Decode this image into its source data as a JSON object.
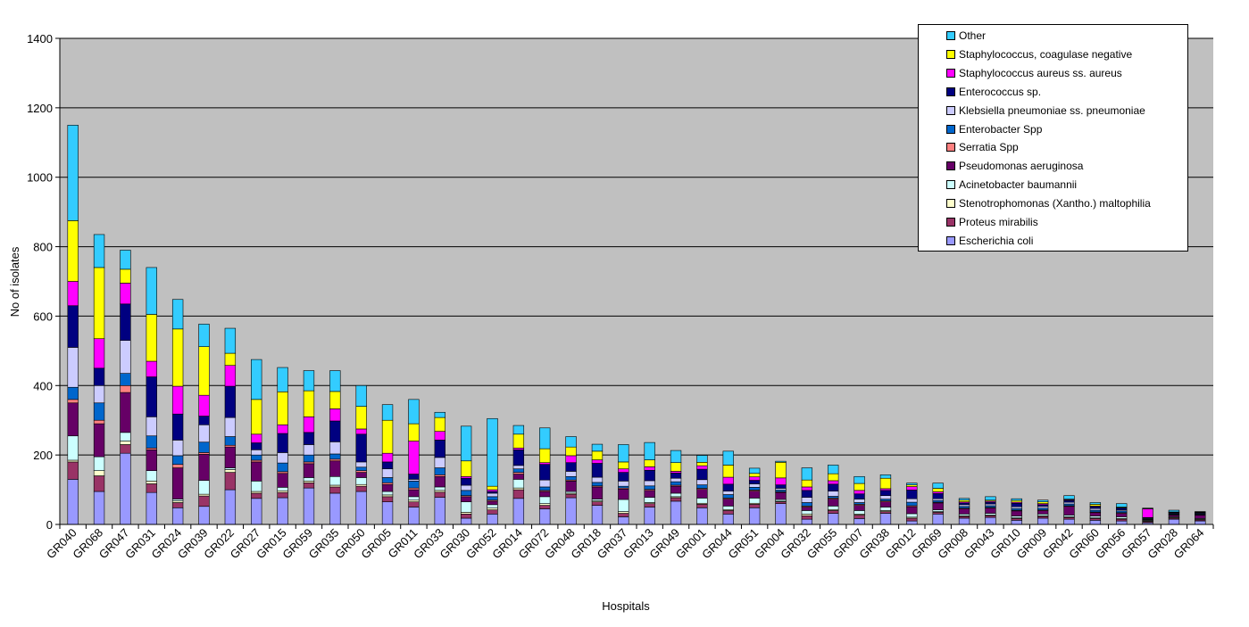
{
  "chart_data": {
    "type": "bar",
    "stacked": true,
    "title": "",
    "xlabel": "Hospitals",
    "ylabel": "No of isolates",
    "ylim": [
      0,
      1400
    ],
    "yticks": [
      0,
      200,
      400,
      600,
      800,
      1000,
      1200,
      1400
    ],
    "grid": true,
    "legend_placement": "top-right",
    "categories": [
      "GR040",
      "GR068",
      "GR047",
      "GR031",
      "GR024",
      "GR039",
      "GR022",
      "GR027",
      "GR015",
      "GR059",
      "GR035",
      "GR050",
      "GR005",
      "GR011",
      "GR033",
      "GR030",
      "GR052",
      "GR014",
      "GR072",
      "GR048",
      "GR018",
      "GR037",
      "GR013",
      "GR049",
      "GR001",
      "GR044",
      "GR051",
      "GR004",
      "GR032",
      "GR055",
      "GR007",
      "GR038",
      "GR012",
      "GR069",
      "GR008",
      "GR043",
      "GR010",
      "GR009",
      "GR042",
      "GR060",
      "GR056",
      "GR057",
      "GR028",
      "GR064"
    ],
    "series": [
      {
        "name": "Escherichia coli",
        "color": "#9999ff",
        "values": [
          130,
          95,
          205,
          92,
          48,
          52,
          100,
          75,
          77,
          105,
          90,
          95,
          65,
          50,
          78,
          18,
          30,
          75,
          45,
          77,
          55,
          22,
          50,
          67,
          48,
          30,
          48,
          60,
          15,
          32,
          17,
          32,
          10,
          30,
          18,
          20,
          12,
          18,
          15,
          12,
          10,
          5,
          15,
          10
        ]
      },
      {
        "name": "Proteus mirabilis",
        "color": "#993366",
        "values": [
          50,
          45,
          25,
          25,
          15,
          30,
          50,
          15,
          15,
          15,
          18,
          15,
          15,
          15,
          15,
          12,
          12,
          25,
          10,
          10,
          10,
          10,
          10,
          10,
          10,
          10,
          10,
          5,
          10,
          8,
          10,
          5,
          8,
          5,
          5,
          5,
          5,
          5,
          5,
          5,
          5,
          3,
          3,
          3
        ]
      },
      {
        "name": "Stenotrophomonas (Xantho.) maltophilia",
        "color": "#ffffcc",
        "values": [
          5,
          15,
          10,
          8,
          5,
          5,
          8,
          5,
          5,
          5,
          5,
          5,
          5,
          5,
          5,
          5,
          5,
          5,
          5,
          3,
          3,
          5,
          3,
          3,
          3,
          3,
          3,
          2,
          5,
          3,
          3,
          3,
          3,
          2,
          2,
          2,
          2,
          2,
          2,
          2,
          2,
          2,
          2,
          2
        ]
      },
      {
        "name": "Acinetobacter baumannii",
        "color": "#ccffff",
        "values": [
          70,
          40,
          25,
          30,
          5,
          40,
          5,
          30,
          10,
          10,
          25,
          20,
          10,
          10,
          10,
          30,
          10,
          25,
          20,
          5,
          5,
          35,
          15,
          10,
          15,
          10,
          15,
          5,
          10,
          10,
          10,
          10,
          10,
          5,
          5,
          5,
          5,
          5,
          5,
          5,
          5,
          2,
          2,
          2
        ]
      },
      {
        "name": "Pseudomonas aeruginosa",
        "color": "#660066",
        "values": [
          95,
          95,
          115,
          60,
          90,
          75,
          60,
          55,
          40,
          40,
          45,
          15,
          20,
          20,
          30,
          15,
          10,
          15,
          15,
          30,
          35,
          30,
          20,
          20,
          25,
          20,
          20,
          20,
          10,
          20,
          15,
          15,
          20,
          20,
          15,
          15,
          15,
          10,
          25,
          10,
          10,
          2,
          5,
          10
        ]
      },
      {
        "name": "Serratia Spp",
        "color": "#ff8080",
        "values": [
          10,
          10,
          20,
          5,
          10,
          5,
          5,
          5,
          5,
          5,
          5,
          5,
          5,
          5,
          5,
          3,
          3,
          5,
          3,
          3,
          3,
          3,
          3,
          3,
          3,
          3,
          3,
          2,
          3,
          3,
          3,
          3,
          3,
          2,
          2,
          2,
          2,
          2,
          2,
          2,
          2,
          1,
          1,
          1
        ]
      },
      {
        "name": "Enterobacter Spp",
        "color": "#0066cc",
        "values": [
          35,
          50,
          35,
          35,
          25,
          30,
          25,
          15,
          25,
          20,
          15,
          10,
          15,
          20,
          20,
          15,
          10,
          10,
          10,
          10,
          10,
          5,
          10,
          10,
          10,
          10,
          8,
          5,
          10,
          5,
          5,
          5,
          10,
          5,
          5,
          5,
          5,
          5,
          5,
          5,
          5,
          2,
          2,
          2
        ]
      },
      {
        "name": "Klebsiella pneumoniae ss. pneumoniae",
        "color": "#ccccff",
        "values": [
          115,
          50,
          95,
          55,
          45,
          50,
          55,
          15,
          30,
          30,
          35,
          15,
          25,
          5,
          30,
          15,
          10,
          10,
          20,
          15,
          15,
          15,
          15,
          10,
          15,
          10,
          10,
          5,
          15,
          15,
          10,
          10,
          10,
          5,
          5,
          5,
          5,
          5,
          5,
          5,
          3,
          2,
          2,
          2
        ]
      },
      {
        "name": "Enterococcus sp.",
        "color": "#000080",
        "values": [
          120,
          50,
          105,
          115,
          75,
          25,
          90,
          20,
          55,
          35,
          60,
          80,
          20,
          15,
          50,
          20,
          5,
          45,
          45,
          25,
          40,
          25,
          30,
          15,
          30,
          20,
          10,
          10,
          20,
          20,
          15,
          15,
          25,
          15,
          5,
          5,
          10,
          5,
          5,
          5,
          5,
          1,
          2,
          2
        ]
      },
      {
        "name": "Staphylococcus aureus ss. aureus",
        "color": "#ff00ff",
        "values": [
          70,
          85,
          60,
          45,
          80,
          60,
          60,
          25,
          25,
          45,
          35,
          15,
          25,
          95,
          25,
          5,
          5,
          5,
          5,
          20,
          10,
          10,
          10,
          5,
          10,
          20,
          10,
          20,
          10,
          10,
          10,
          5,
          10,
          5,
          3,
          3,
          3,
          3,
          2,
          2,
          1,
          25,
          1,
          1
        ]
      },
      {
        "name": "Staphylococcus, coagulase negative",
        "color": "#ffff00",
        "values": [
          175,
          205,
          40,
          135,
          165,
          140,
          35,
          100,
          95,
          75,
          50,
          65,
          95,
          50,
          40,
          45,
          10,
          40,
          40,
          25,
          25,
          20,
          20,
          25,
          10,
          35,
          10,
          45,
          20,
          20,
          20,
          30,
          5,
          10,
          5,
          3,
          5,
          5,
          2,
          5,
          2,
          1,
          1,
          1
        ]
      },
      {
        "name": "Other",
        "color": "#33ccff",
        "values": [
          275,
          95,
          55,
          135,
          85,
          65,
          72,
          115,
          70,
          58,
          60,
          60,
          45,
          70,
          15,
          100,
          195,
          25,
          60,
          30,
          20,
          50,
          50,
          35,
          20,
          40,
          15,
          3,
          35,
          25,
          20,
          10,
          5,
          15,
          5,
          10,
          5,
          5,
          10,
          5,
          10,
          1,
          5,
          1
        ]
      }
    ]
  }
}
